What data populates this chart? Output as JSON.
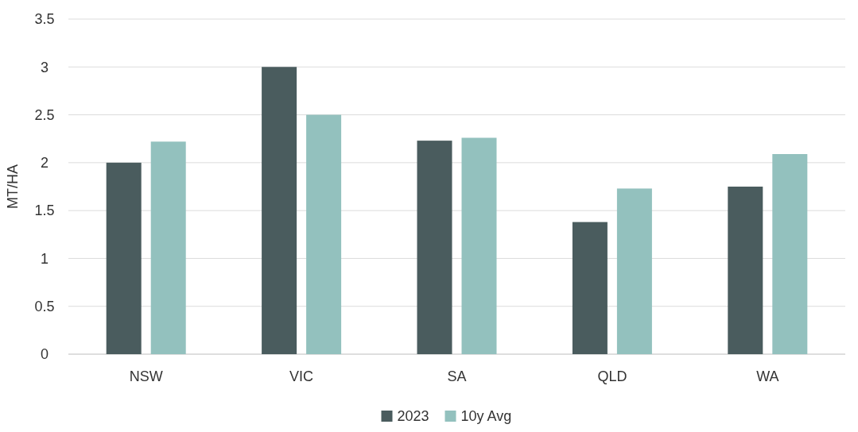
{
  "chart_data": {
    "type": "bar",
    "ylabel": "MT/HA",
    "categories": [
      "NSW",
      "VIC",
      "SA",
      "QLD",
      "WA"
    ],
    "series": [
      {
        "name": "2023",
        "color": "#4a5c5e",
        "values": [
          2.0,
          3.0,
          2.23,
          1.38,
          1.75
        ]
      },
      {
        "name": "10y Avg",
        "color": "#93c1be",
        "values": [
          2.22,
          2.5,
          2.26,
          1.73,
          2.09
        ]
      }
    ],
    "ylim": [
      0,
      3.5
    ],
    "yticks": [
      0,
      0.5,
      1,
      1.5,
      2,
      2.5,
      3,
      3.5
    ],
    "grid": "y",
    "legend": "bottom"
  }
}
